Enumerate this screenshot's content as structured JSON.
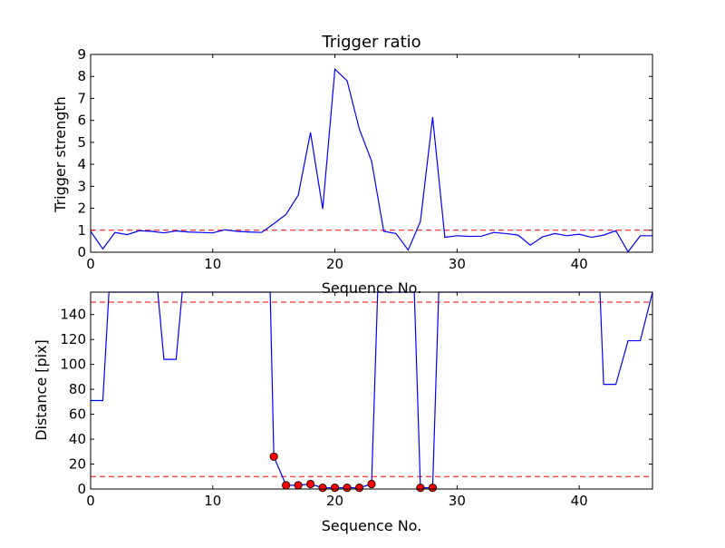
{
  "chart_data": [
    {
      "type": "line",
      "title": "Trigger ratio",
      "xlabel": "Sequence No.",
      "ylabel": "Trigger strength",
      "xlim": [
        0,
        46
      ],
      "ylim": [
        0,
        9
      ],
      "xticks": [
        0,
        10,
        20,
        30,
        40
      ],
      "yticks": [
        0,
        1,
        2,
        3,
        4,
        5,
        6,
        7,
        8,
        9
      ],
      "line_color": "#0000ff",
      "series": [
        {
          "x": [
            0,
            1,
            2,
            3,
            4,
            5,
            6,
            7,
            8,
            9,
            10,
            11,
            12,
            13,
            14,
            15,
            16,
            17,
            18,
            19,
            20,
            21,
            22,
            23,
            24,
            25,
            26,
            27,
            28,
            29,
            30,
            31,
            32,
            33,
            34,
            35,
            36,
            37,
            38,
            39,
            40,
            41,
            42,
            43,
            44,
            45,
            46
          ],
          "values": [
            0.95,
            0.15,
            0.9,
            0.8,
            0.98,
            0.95,
            0.88,
            0.97,
            0.92,
            0.9,
            0.88,
            1.02,
            0.95,
            0.92,
            0.9,
            1.3,
            1.72,
            2.6,
            5.45,
            1.97,
            8.33,
            7.8,
            5.6,
            4.15,
            0.95,
            0.85,
            0.1,
            1.4,
            6.15,
            0.68,
            0.75,
            0.72,
            0.73,
            0.9,
            0.85,
            0.78,
            0.32,
            0.7,
            0.85,
            0.75,
            0.82,
            0.68,
            0.78,
            0.98,
            0.02,
            0.75,
            0.75
          ]
        }
      ],
      "reference_lines": [
        {
          "y": 1,
          "color": "#ff0000",
          "style": "dashed"
        }
      ],
      "grid": false
    },
    {
      "type": "line",
      "title": "",
      "xlabel": "Sequence No.",
      "ylabel": "Distance [pix]",
      "xlim": [
        0,
        46
      ],
      "ylim": [
        0,
        158
      ],
      "xticks": [
        0,
        10,
        20,
        30,
        40
      ],
      "yticks": [
        0,
        20,
        40,
        60,
        80,
        100,
        120,
        140
      ],
      "line_color": "#0000ff",
      "marker_color": "#ff0000",
      "series": [
        {
          "x": [
            0,
            1,
            1.5,
            5.5,
            6,
            7,
            7.5,
            14.7,
            15,
            16,
            17,
            18,
            19,
            20,
            21,
            22,
            23,
            23.5,
            26.5,
            27,
            28,
            28.5,
            41.7,
            42,
            43,
            44,
            45,
            46
          ],
          "values": [
            71,
            71,
            158,
            158,
            104,
            104,
            158,
            158,
            26,
            3,
            3,
            4,
            1,
            1,
            1,
            1,
            4,
            158,
            158,
            1,
            1,
            158,
            158,
            84,
            84,
            119,
            119,
            158
          ]
        }
      ],
      "markers": {
        "x": [
          15,
          16,
          17,
          18,
          19,
          20,
          21,
          22,
          23,
          27,
          28
        ],
        "values": [
          26,
          3,
          3,
          4,
          1,
          1,
          1,
          1,
          4,
          1,
          1
        ]
      },
      "reference_lines": [
        {
          "y": 150,
          "color": "#ff0000",
          "style": "dashed"
        },
        {
          "y": 10,
          "color": "#ff0000",
          "style": "dashed"
        }
      ],
      "grid": false
    }
  ]
}
